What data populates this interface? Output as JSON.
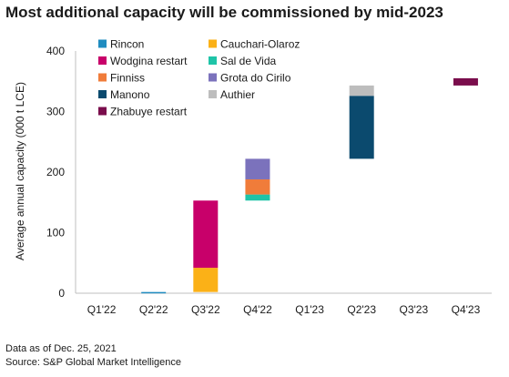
{
  "chart_data": {
    "type": "bar",
    "stacked": true,
    "waterfall": true,
    "title": "Most additional capacity will be commissioned by mid-2023",
    "ylabel": "Average annual capacity (000 t LCE)",
    "xlabel": "",
    "ylim": [
      0,
      400
    ],
    "yticks": [
      0,
      100,
      200,
      300,
      400
    ],
    "grid": false,
    "legend_position": "top-left",
    "categories": [
      "Q1'22",
      "Q2'22",
      "Q3'22",
      "Q4'22",
      "Q1'23",
      "Q2'23",
      "Q3'23",
      "Q4'23"
    ],
    "series": [
      {
        "name": "Rincon",
        "color": "#1f8cc0",
        "category": "Q2'22",
        "base": 0,
        "value": 2
      },
      {
        "name": "Cauchari-Olaroz",
        "color": "#fbb117",
        "category": "Q3'22",
        "base": 2,
        "value": 40
      },
      {
        "name": "Wodgina restart",
        "color": "#c8006a",
        "category": "Q3'22",
        "base": 42,
        "value": 111
      },
      {
        "name": "Sal de Vida",
        "color": "#1fc4a8",
        "category": "Q4'22",
        "base": 153,
        "value": 10
      },
      {
        "name": "Finniss",
        "color": "#f07c3a",
        "category": "Q4'22",
        "base": 163,
        "value": 25
      },
      {
        "name": "Grota do Cirilo",
        "color": "#7b72bc",
        "category": "Q4'22",
        "base": 188,
        "value": 34
      },
      {
        "name": "Manono",
        "color": "#0b4a6e",
        "category": "Q2'23",
        "base": 222,
        "value": 104
      },
      {
        "name": "Authier",
        "color": "#bdbdbd",
        "category": "Q2'23",
        "base": 326,
        "value": 17
      },
      {
        "name": "Zhabuye restart",
        "color": "#7a0d4c",
        "category": "Q4'23",
        "base": 343,
        "value": 12
      }
    ]
  },
  "footnote": {
    "line1": "Data as of Dec. 25, 2021",
    "line2": "Source: S&P Global Market Intelligence"
  }
}
